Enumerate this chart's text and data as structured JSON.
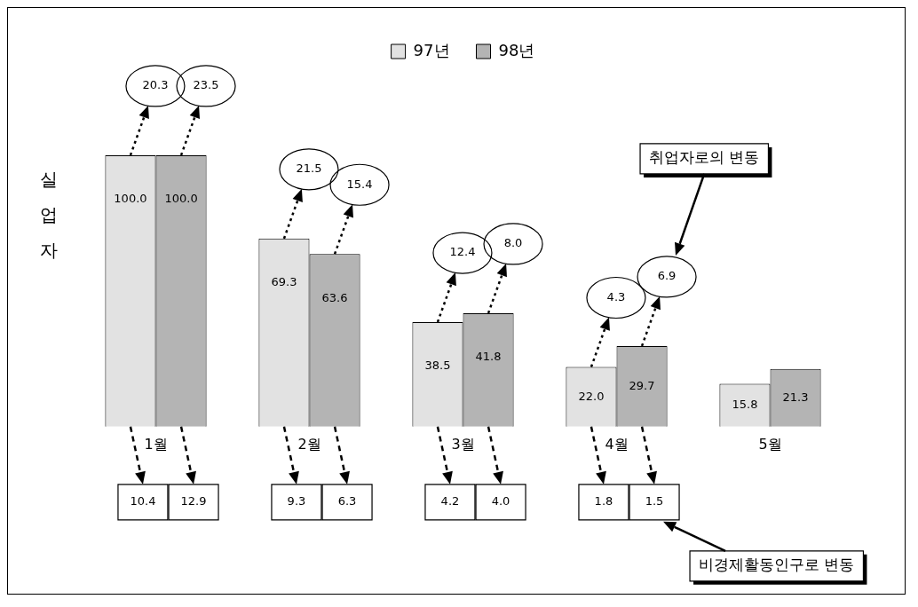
{
  "chart_data": {
    "type": "bar",
    "ylabel": "실업자",
    "categories": [
      "1월",
      "2월",
      "3월",
      "4월",
      "5월"
    ],
    "series": [
      {
        "name": "97년",
        "color": "#e2e2e2",
        "values": [
          100.0,
          69.3,
          38.5,
          22.0,
          15.8
        ],
        "value_labels": [
          "100.0",
          "69.3",
          "38.5",
          "22.0",
          "15.8"
        ]
      },
      {
        "name": "98년",
        "color": "#b4b4b4",
        "values": [
          100.0,
          63.6,
          41.8,
          29.7,
          21.3
        ],
        "value_labels": [
          "100.0",
          "63.6",
          "41.8",
          "29.7",
          "21.3"
        ]
      }
    ],
    "legend": "top",
    "annotations": [
      "20.3",
      "23.5",
      "10.4",
      "12.9",
      "21.5",
      "15.4",
      "9.3",
      "6.3",
      "12.4",
      "8.0",
      "4.2",
      "4.0",
      "4.3",
      "6.9",
      "1.8",
      "1.5",
      "취업자로의 변동",
      "비경제활동인구로 변동"
    ]
  }
}
